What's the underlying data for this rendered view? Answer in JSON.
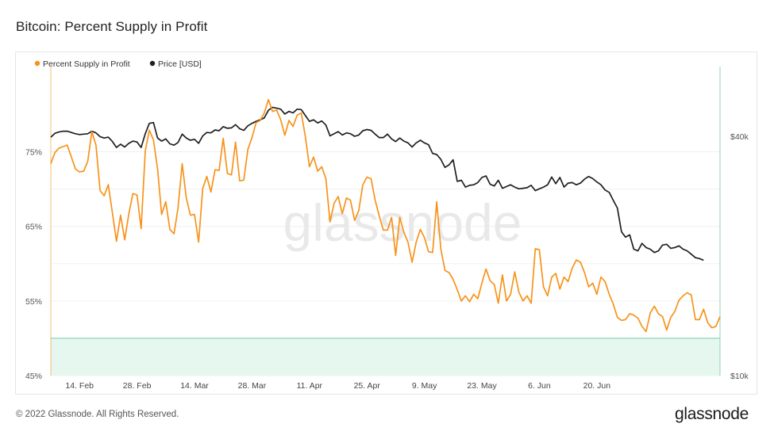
{
  "page": {
    "title": "Bitcoin: Percent Supply in Profit",
    "copyright": "© 2022 Glassnode. All Rights Reserved.",
    "brand": "glassnode",
    "watermark": "glassnode"
  },
  "colors": {
    "supply_in_profit": "#f7931a",
    "price": "#1f1f1f",
    "threshold_band": "#e6f7ef",
    "threshold_line": "#6ad0a6",
    "grid": "#eef0f3"
  },
  "chart_data": {
    "type": "line",
    "title": "Bitcoin: Percent Supply in Profit",
    "legend_position": "top-left",
    "grid": true,
    "x_ticks": [
      "14. Feb",
      "28. Feb",
      "14. Mar",
      "28. Mar",
      "11. Apr",
      "25. Apr",
      "9. May",
      "23. May",
      "6. Jun",
      "20. Jun"
    ],
    "y_left": {
      "ticks": [
        "45%",
        "55%",
        "65%",
        "75%"
      ],
      "range": [
        45,
        86
      ]
    },
    "y_right": {
      "ticks": [
        "$10k",
        "$40k"
      ],
      "scale": "log"
    },
    "threshold_band": {
      "from": 45,
      "to": 50
    },
    "series": [
      {
        "name": "Percent Supply in Profit",
        "values": [
          73.4,
          74.9,
          75.5,
          75.7,
          75.9,
          74.3,
          72.7,
          72.3,
          72.4,
          73.7,
          77.7,
          75.9,
          69.8,
          69.1,
          70.6,
          66.8,
          63,
          66.5,
          63.2,
          66.7,
          69.4,
          69.2,
          64.7,
          75.1,
          77.9,
          76.6,
          72.7,
          66.6,
          68.3,
          64.6,
          64,
          67.5,
          73.4,
          68.8,
          66.5,
          66.6,
          62.9,
          70.1,
          71.7,
          69.6,
          72.6,
          72.5,
          76.8,
          72.1,
          71.9,
          76.3,
          71.1,
          71.2,
          75.3,
          76.9,
          78.9,
          79.2,
          80.2,
          82,
          80.4,
          80.6,
          79.3,
          77.2,
          79.2,
          78.4,
          79.9,
          80.2,
          77,
          73,
          74.3,
          72.4,
          73,
          71.4,
          65.6,
          68.1,
          69,
          66.7,
          68.8,
          68.5,
          65.8,
          67.1,
          70.6,
          71.6,
          71.4,
          68.5,
          66.4,
          64.5,
          64.5,
          66.2,
          61.1,
          66.2,
          64.2,
          62.9,
          60.2,
          62.9,
          64.6,
          63.5,
          61.6,
          61.5,
          68.3,
          62,
          59.1,
          58.8,
          57.9,
          56.5,
          55,
          55.7,
          54.9,
          55.9,
          55.3,
          57.4,
          59.3,
          57.7,
          57.2,
          54.7,
          58.5,
          55,
          55.9,
          58.9,
          56.2,
          55,
          55.7,
          54.7,
          62,
          61.9,
          56.9,
          55.7,
          58.2,
          58.7,
          56.6,
          58.2,
          57.6,
          59.4,
          60.5,
          60.2,
          58.8,
          56.9,
          57.4,
          55.9,
          58.2,
          57.6,
          55.9,
          54.6,
          52.8,
          52.4,
          52.5,
          53.3,
          53.1,
          52.7,
          51.6,
          50.9,
          53.4,
          54.3,
          53.3,
          52.9,
          51.1,
          52.8,
          53.6,
          55.1,
          55.7,
          56.1,
          55.8,
          52.5,
          52.5,
          53.9,
          52.1,
          51.4,
          51.6,
          52.9
        ]
      },
      {
        "name": "Price [USD]",
        "values": [
          39800,
          40700,
          41000,
          41200,
          41200,
          40900,
          40600,
          40400,
          40500,
          40600,
          41200,
          40800,
          39900,
          39600,
          39800,
          38800,
          37500,
          38200,
          37600,
          38400,
          38900,
          38700,
          37500,
          40600,
          43100,
          43300,
          39600,
          38900,
          39400,
          38300,
          38000,
          38600,
          40500,
          39600,
          39100,
          39300,
          38400,
          40100,
          40900,
          40800,
          41500,
          41300,
          42300,
          41900,
          42000,
          42800,
          41800,
          41400,
          42500,
          43100,
          43600,
          44000,
          44500,
          46500,
          47300,
          47100,
          46800,
          45500,
          46200,
          45800,
          46800,
          46700,
          45100,
          43600,
          44000,
          43200,
          43700,
          42700,
          40100,
          40600,
          41100,
          40300,
          40800,
          40600,
          40000,
          40300,
          41300,
          41600,
          41400,
          40500,
          39700,
          39700,
          40500,
          39400,
          38800,
          39600,
          38900,
          38500,
          37600,
          38500,
          39100,
          38500,
          38100,
          36200,
          36000,
          35000,
          33400,
          33900,
          34900,
          30800,
          31000,
          29800,
          30100,
          30200,
          30600,
          31500,
          31800,
          30300,
          30000,
          31000,
          29600,
          29900,
          30200,
          29800,
          29500,
          29600,
          29700,
          30100,
          29200,
          29500,
          29800,
          30200,
          31600,
          30400,
          31500,
          29800,
          30500,
          30600,
          30200,
          30500,
          31200,
          31700,
          31300,
          30700,
          30200,
          29300,
          28900,
          27600,
          26400,
          23000,
          22300,
          22600,
          20800,
          20600,
          21500,
          21000,
          20800,
          20400,
          20600,
          21300,
          21400,
          20900,
          21000,
          21200,
          20800,
          20600,
          20200,
          19800,
          19700,
          19500
        ]
      }
    ]
  }
}
